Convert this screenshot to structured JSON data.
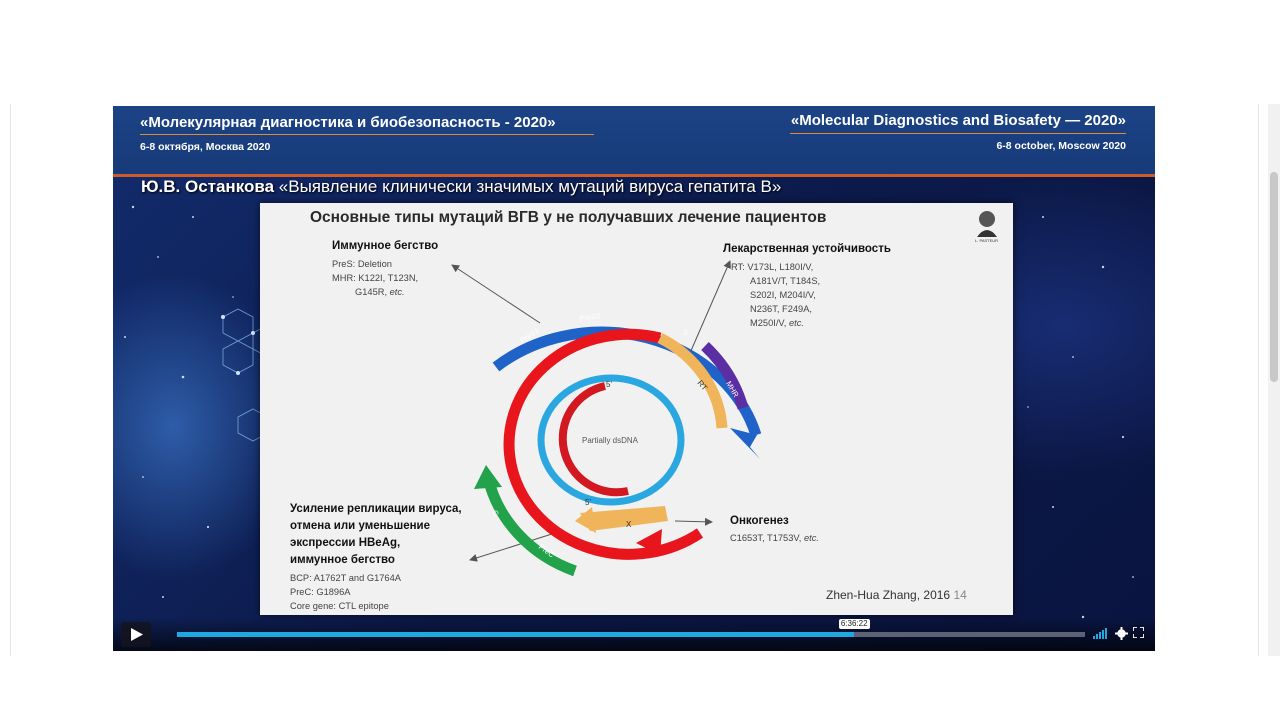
{
  "conference": {
    "title_ru": "«Молекулярная диагностика и биобезопасность - 2020»",
    "date_ru": "6-8 октября, Москва 2020",
    "title_en": "«Molecular Diagnostics and Biosafety — 2020»",
    "date_en": "6-8 october, Moscow 2020"
  },
  "talk": {
    "speaker": "Ю.В. Останкова",
    "title": "«Выявление клинически значимых мутаций вируса гепатита В»"
  },
  "slide": {
    "title": "Основные типы мутаций ВГВ у не получавших лечение пациентов",
    "logo_caption": "L. PASTEUR",
    "immune_escape": {
      "heading": "Иммунное бегство",
      "lines": [
        "PreS: Deletion",
        "MHR: K122I, T123N,",
        "G145R,"
      ],
      "etc": "etc."
    },
    "drug_resistance": {
      "heading": "Лекарственная устойчивость",
      "lines": [
        "RT: V173L, L180I/V,",
        "A181V/T, T184S,",
        "S202I, M204I/V,",
        "N236T, F249A,",
        "M250I/V,"
      ],
      "etc": "etc."
    },
    "replication": {
      "heading_lines": [
        "Усиление репликации вируса,",
        "отмена или уменьшение",
        "экспрессии HBeAg,",
        "иммунное бегство"
      ],
      "lines": [
        "BCP: A1762T and G1764A",
        "PreC: G1896A",
        "Core gene: CTL epitope"
      ]
    },
    "oncogenesis": {
      "heading": "Онкогенез",
      "line": "C1653T, T1753V,",
      "etc": "etc."
    },
    "diagram": {
      "center_label": "Partially dsDNA",
      "five_prime_top": "5'",
      "five_prime_bottom": "5'",
      "segments": [
        "PreS1",
        "PreS2",
        "S",
        "RT",
        "MHR",
        "X",
        "PreC",
        "C"
      ]
    },
    "citation": "Zhen-Hua Zhang, 2016",
    "page_number": "14"
  },
  "player": {
    "time_tooltip": "6:36:22",
    "progress_fraction": 0.746
  },
  "colors": {
    "header_blue": "#1c4386",
    "header_accent": "#d15a2a",
    "progress_blue": "#1ea9e1",
    "segment_blue": "#1f63c8",
    "segment_red": "#e8151c",
    "segment_orange": "#f0b45a",
    "segment_purple": "#5b2fa3",
    "segment_green": "#22a24a",
    "inner_cyan": "#2aa7e1",
    "inner_red": "#d21820"
  },
  "icons": [
    "play-icon",
    "volume-icon",
    "settings-icon",
    "fullscreen-icon",
    "pasteur-logo"
  ]
}
